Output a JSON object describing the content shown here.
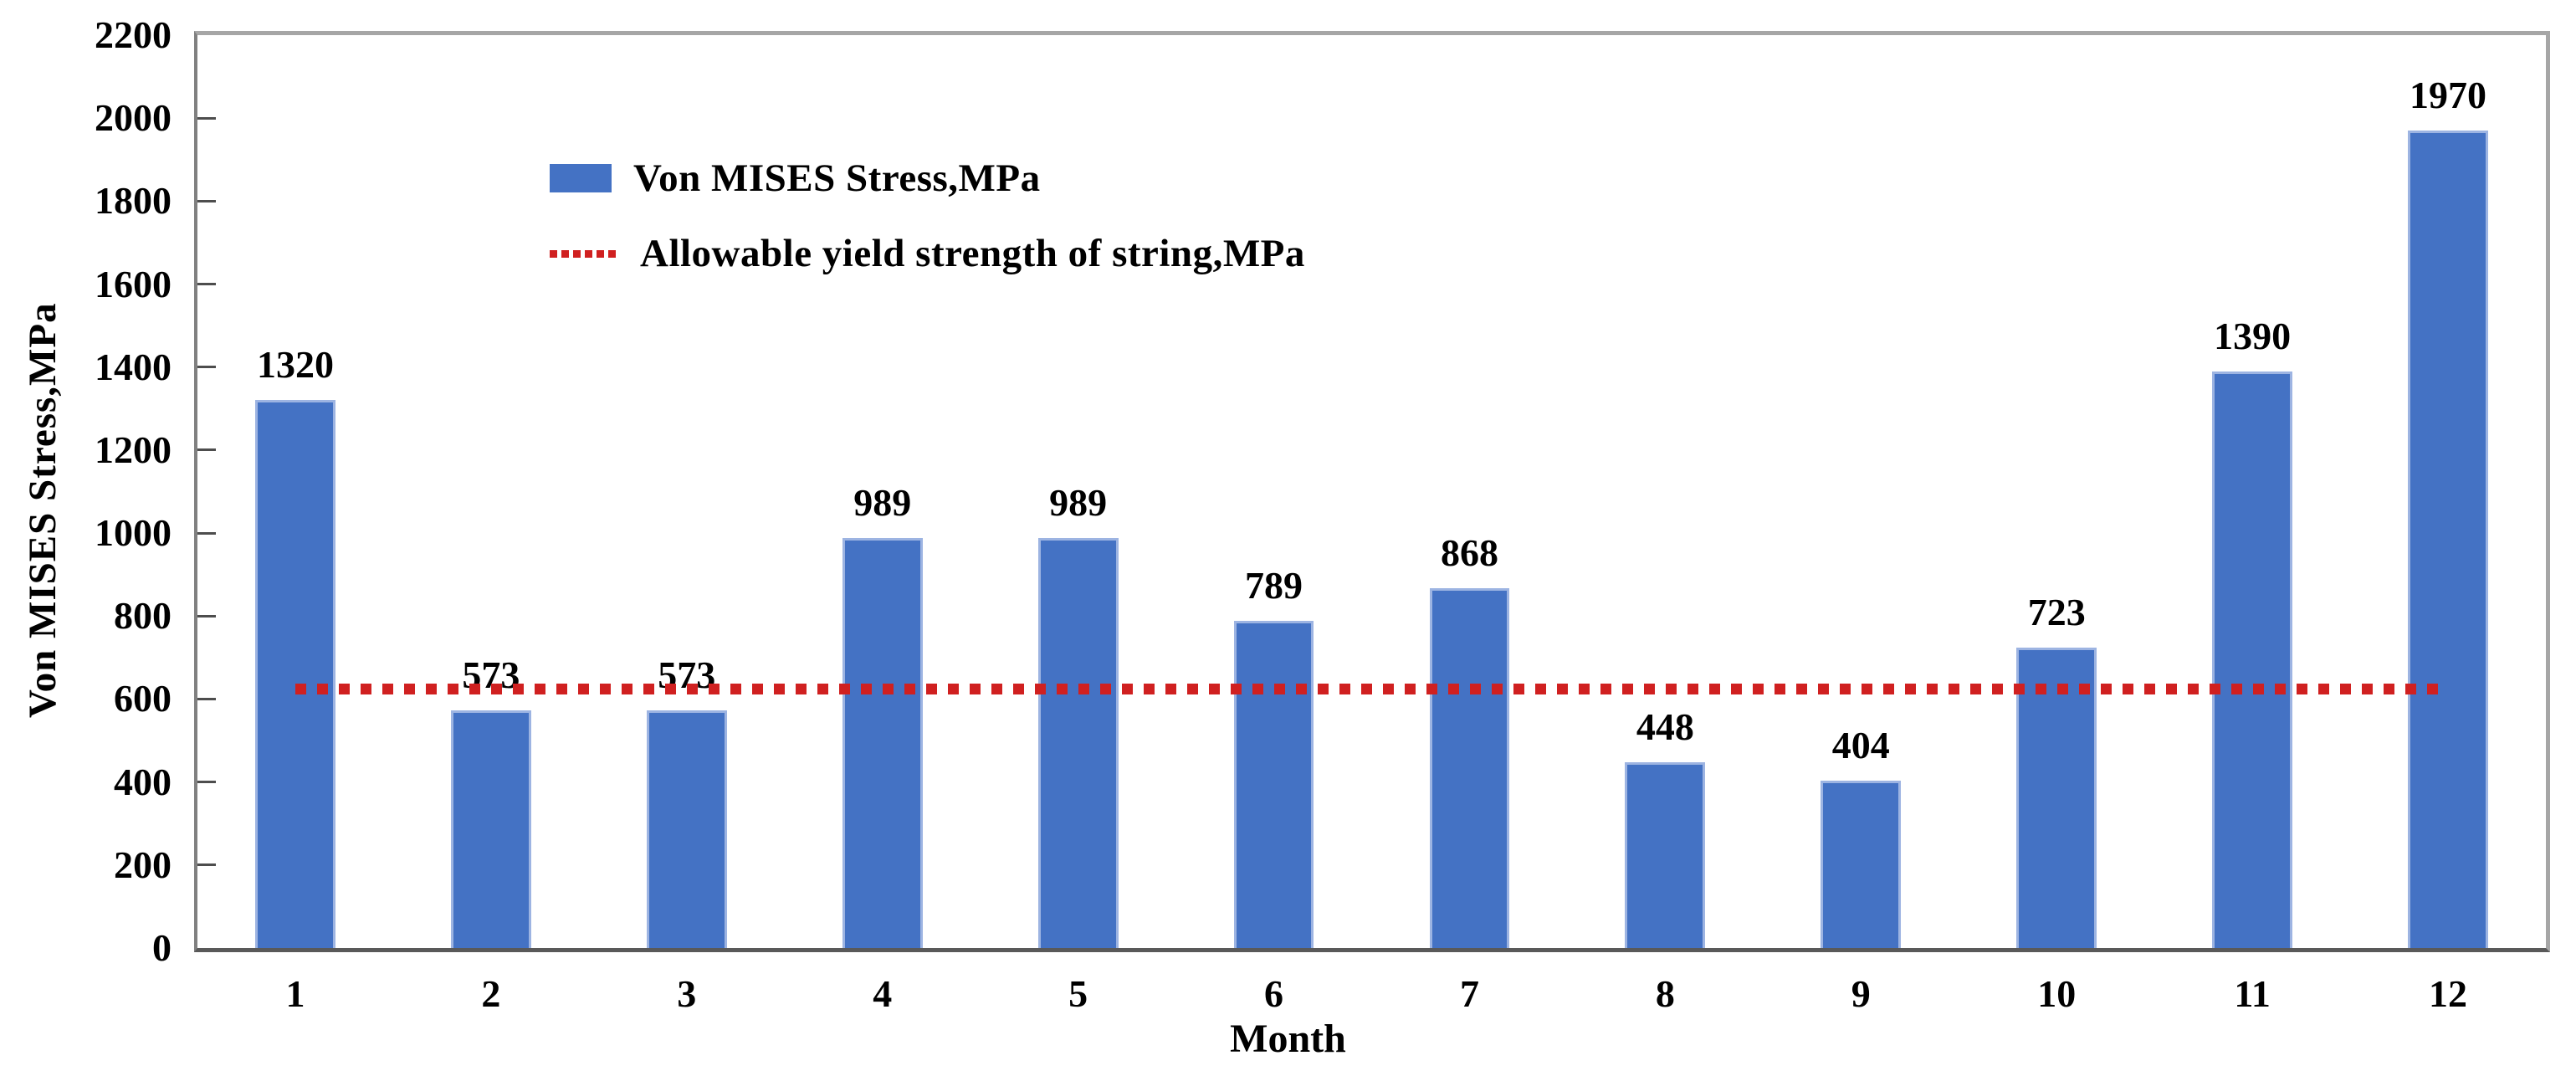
{
  "chart_data": {
    "type": "bar",
    "title": "",
    "xlabel": "Month",
    "ylabel": "Von MISES Stress,MPa",
    "categories": [
      "1",
      "2",
      "3",
      "4",
      "5",
      "6",
      "7",
      "8",
      "9",
      "10",
      "11",
      "12"
    ],
    "values": [
      1320,
      573,
      573,
      989,
      989,
      789,
      868,
      448,
      404,
      723,
      1390,
      1970
    ],
    "data_labels": [
      "1320",
      "573",
      "573",
      "989",
      "989",
      "789",
      "868",
      "448",
      "404",
      "723",
      "1390",
      "1970"
    ],
    "ylim": [
      0,
      2200
    ],
    "ytick_step": 200,
    "ytick_labels": [
      "0",
      "200",
      "400",
      "600",
      "800",
      "1000",
      "1200",
      "1400",
      "1600",
      "1800",
      "2000",
      "2200"
    ],
    "grid": false,
    "legend_position": "upper-left-inside",
    "threshold_line": {
      "label": "Allowable yield strength of string,MPa",
      "value": 625,
      "style": "dotted",
      "color": "#d02020"
    },
    "series": [
      {
        "name": "Von MISES Stress,MPa",
        "type": "bar",
        "color": "#4472c4",
        "values": [
          1320,
          573,
          573,
          989,
          989,
          789,
          868,
          448,
          404,
          723,
          1390,
          1970
        ]
      },
      {
        "name": "Allowable yield strength of string,MPa",
        "type": "line",
        "color": "#d02020",
        "values": [
          625,
          625,
          625,
          625,
          625,
          625,
          625,
          625,
          625,
          625,
          625,
          625
        ]
      }
    ],
    "legend": [
      {
        "label": "Von MISES Stress,MPa",
        "swatch": "bar-square",
        "color": "#4472c4"
      },
      {
        "label": "Allowable yield strength of string,MPa",
        "swatch": "dotted-line",
        "color": "#d02020"
      }
    ]
  },
  "colors": {
    "bar_fill": "#4472c4",
    "bar_edge": "#9db4e2",
    "threshold_red": "#d02020",
    "axis_left": "#808080",
    "axis_bottom": "#595959",
    "axis_border_light": "#a6a6a6",
    "tick_mark": "#4d4d4d",
    "text": "#000000",
    "background": "#ffffff"
  }
}
